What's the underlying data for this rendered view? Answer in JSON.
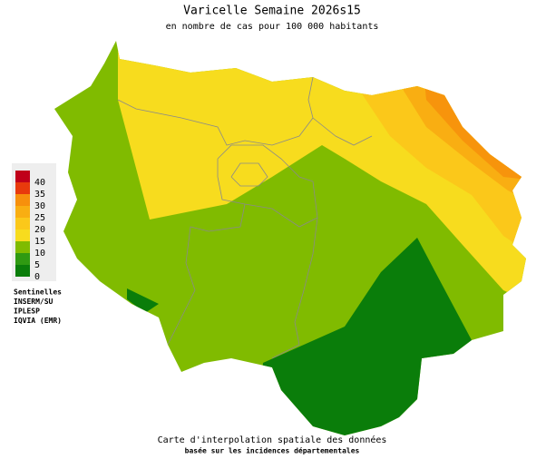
{
  "title": "Varicelle Semaine 2026s15",
  "subtitle": "en nombre de cas pour 100 000 habitants",
  "legend": {
    "ticks": [
      0,
      5,
      10,
      15,
      20,
      25,
      30,
      35,
      40
    ],
    "colors": [
      "#0a7d0a",
      "#2f9a12",
      "#80bb00",
      "#f7dc1e",
      "#fbc81a",
      "#f9ae12",
      "#f7900c",
      "#e83a0c",
      "#c0001a"
    ]
  },
  "sources": [
    "Sentinelles",
    "INSERM/SU",
    "IPLESP",
    "IQVIA (EMR)"
  ],
  "footer": {
    "line1": "Carte d'interpolation spatiale des données",
    "line2": "basée sur les incidences départementales"
  }
}
